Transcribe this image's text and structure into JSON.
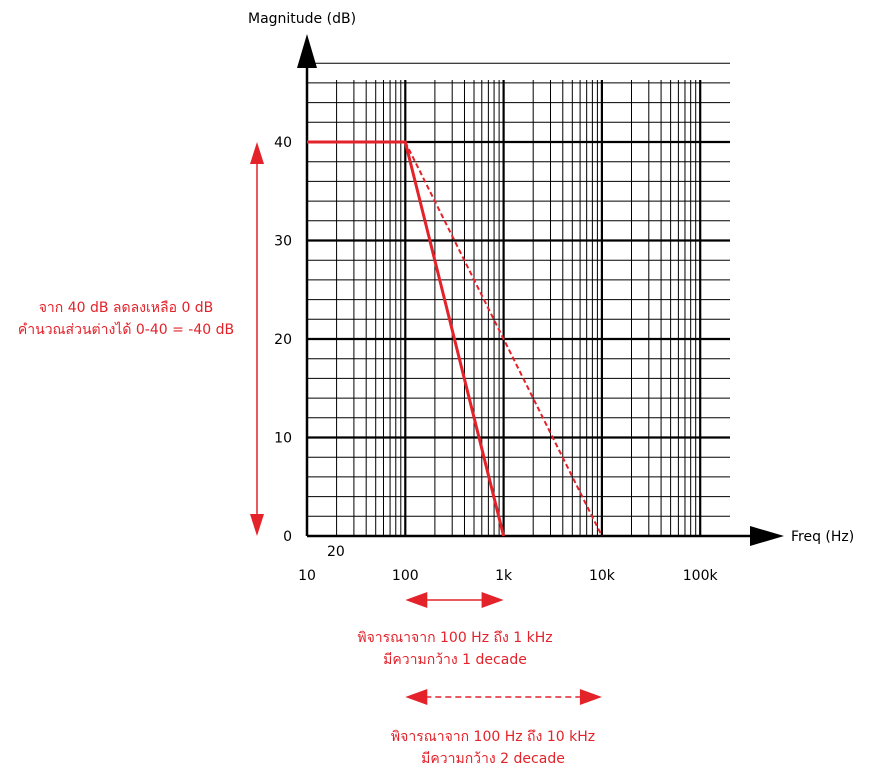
{
  "chart_data": {
    "type": "line",
    "xscale": "log",
    "xlim": [
      10,
      100000
    ],
    "ylim": [
      0,
      48
    ],
    "grid": true,
    "xlabel": "Freq (Hz)",
    "ylabel": "Magnitude (dB)",
    "x_ticks": [
      {
        "value": 10,
        "label": "10"
      },
      {
        "value": 20,
        "label": "20"
      },
      {
        "value": 100,
        "label": "100"
      },
      {
        "value": 1000,
        "label": "1k"
      },
      {
        "value": 10000,
        "label": "10k"
      },
      {
        "value": 100000,
        "label": "100k"
      }
    ],
    "y_ticks": [
      {
        "value": 0,
        "label": "0"
      },
      {
        "value": 10,
        "label": "10"
      },
      {
        "value": 20,
        "label": "20"
      },
      {
        "value": 30,
        "label": "30"
      },
      {
        "value": 40,
        "label": "40"
      }
    ],
    "series": [
      {
        "style": "solid",
        "color": "#e3222a",
        "points": [
          [
            10,
            40
          ],
          [
            100,
            40
          ],
          [
            1000,
            0
          ]
        ]
      },
      {
        "style": "dashed",
        "color": "#e3222a",
        "points": [
          [
            100,
            40
          ],
          [
            10000,
            0
          ]
        ]
      }
    ],
    "annotations": {
      "vertical_range": {
        "from": 0,
        "to": 40,
        "lines": [
          "จาก 40 dB ลดลงเหลือ 0 dB",
          "คำนวณส่วนต่างได้ 0-40 = -40 dB"
        ]
      },
      "range_1": {
        "from": 100,
        "to": 1000,
        "style": "solid",
        "lines": [
          "พิจารณาจาก 100 Hz ถึง 1 kHz",
          "มีความกว้าง 1 decade"
        ]
      },
      "range_2": {
        "from": 100,
        "to": 10000,
        "style": "dashed",
        "lines": [
          "พิจารณาจาก 100 Hz ถึง 10 kHz",
          "มีความกว้าง 2 decade"
        ]
      }
    }
  }
}
